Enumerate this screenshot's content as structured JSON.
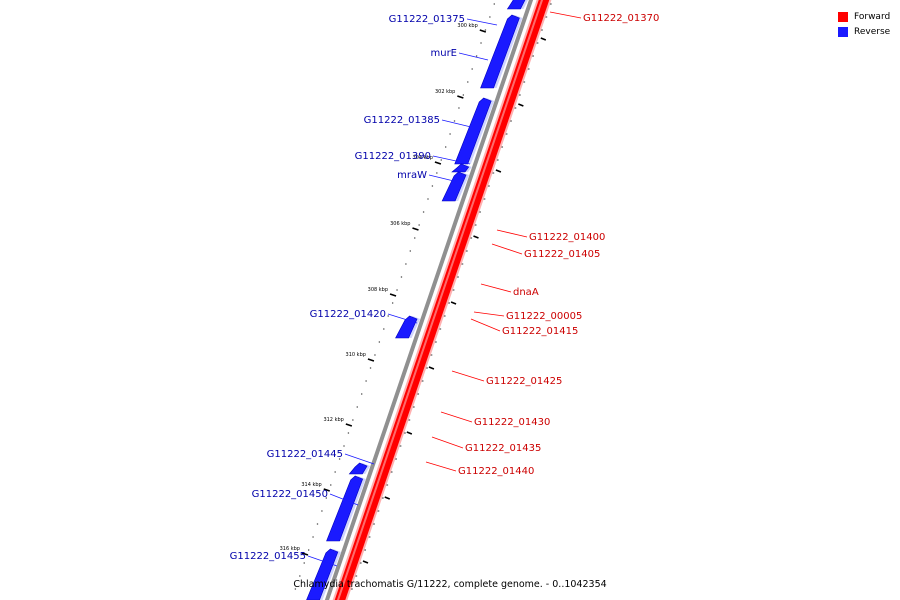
{
  "colors": {
    "forward": "#ff0000",
    "reverse": "#1a1aff",
    "forward_label": "#cc0000",
    "reverse_label": "#0000aa"
  },
  "legend": [
    {
      "label": "Forward",
      "color": "#ff0000"
    },
    {
      "label": "Reverse",
      "color": "#1a1aff"
    }
  ],
  "caption": "Chlamydia trachomatis G/11222, complete genome. - 0..1042354",
  "ticks": [
    "300 kbp",
    "302 kbp",
    "304 kbp",
    "306 kbp",
    "308 kbp",
    "310 kbp",
    "312 kbp",
    "314 kbp",
    "316 kbp"
  ],
  "reverse_genes": [
    "G11222_01375",
    "murE",
    "G11222_01385",
    "G11222_01390",
    "mraW",
    "G11222_01420",
    "G11222_01445",
    "G11222_01450",
    "G11222_01455"
  ],
  "forward_genes": [
    "G11222_01370",
    "G11222_01400",
    "G11222_01405",
    "dnaA",
    "G11222_00005",
    "G11222_01415",
    "G11222_01425",
    "G11222_01430",
    "G11222_01435",
    "G11222_01440"
  ]
}
